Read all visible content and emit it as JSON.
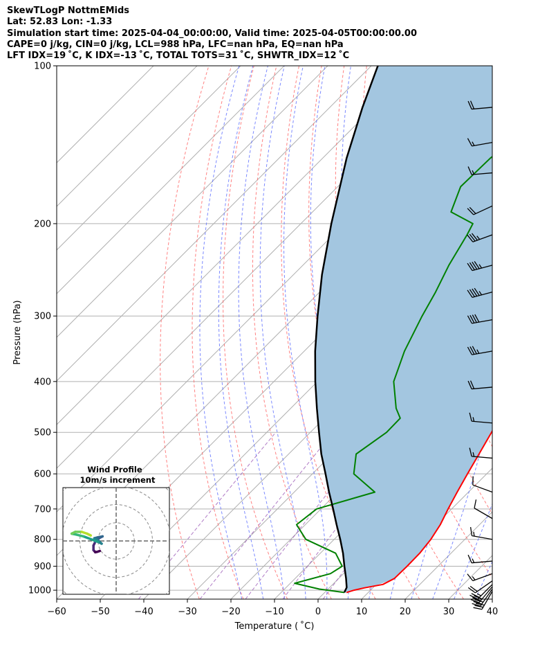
{
  "title_lines": [
    "SkewTLogP NottmEMids",
    "Lat: 52.83   Lon: -1.33",
    "Simulation start time: 2025-04-04_00:00:00, Valid time: 2025-04-05T00:00:00.00",
    "CAPE=0 j/kg, CIN=0 j/kg, LCL=988 hPa, LFC=nan hPa, EQ=nan hPa",
    "LFT IDX=19 ˚C, K IDX=-13 ˚C, TOTAL TOTS=31 ˚C, SHWTR_IDX=12 ˚C"
  ],
  "chart_data": {
    "type": "line",
    "chart_kind": "skew-T log-P diagram",
    "xlabel": "Temperature ( ˚C)",
    "ylabel": "Pressure (hPa)",
    "xlim": [
      -60,
      40
    ],
    "ylim": [
      1040,
      100
    ],
    "y_scale": "log",
    "skew": "45deg",
    "grid": true,
    "x_ticks": [
      -60,
      -50,
      -40,
      -30,
      -20,
      -10,
      0,
      10,
      20,
      30,
      40
    ],
    "y_ticks": [
      100,
      200,
      300,
      400,
      500,
      600,
      700,
      800,
      900,
      1000
    ],
    "colors": {
      "temperature": "#ff0000",
      "dewpoint": "#008000",
      "parcel": "#000000",
      "cape_shade": "#a3c6e0",
      "dry_adiabats": "#ff6b6b",
      "moist_adiabats": "#5a6bff",
      "mixing_ratio": "#9b59b6",
      "isotherms": "#b0b0b0"
    },
    "series": [
      {
        "key": "temperature",
        "points": [
          {
            "p": 1010,
            "t": 5.0
          },
          {
            "p": 1000,
            "t": 6.2
          },
          {
            "p": 990,
            "t": 8.0
          },
          {
            "p": 975,
            "t": 11.5
          },
          {
            "p": 950,
            "t": 12.8
          },
          {
            "p": 900,
            "t": 12.9
          },
          {
            "p": 850,
            "t": 12.8
          },
          {
            "p": 800,
            "t": 12.2
          },
          {
            "p": 750,
            "t": 11.0
          },
          {
            "p": 700,
            "t": 9.2
          },
          {
            "p": 650,
            "t": 7.4
          },
          {
            "p": 600,
            "t": 5.6
          },
          {
            "p": 550,
            "t": 3.7
          },
          {
            "p": 500,
            "t": 1.6
          },
          {
            "p": 450,
            "t": -0.8
          },
          {
            "p": 400,
            "t": -3.5
          },
          {
            "p": 350,
            "t": -6.9
          },
          {
            "p": 300,
            "t": -9.5
          },
          {
            "p": 270,
            "t": -11.6
          },
          {
            "p": 250,
            "t": -13.6
          },
          {
            "p": 220,
            "t": -16.8
          },
          {
            "p": 200,
            "t": -19.3
          },
          {
            "p": 180,
            "t": -16.4
          },
          {
            "p": 160,
            "t": -13.6
          },
          {
            "p": 140,
            "t": -10.8
          },
          {
            "p": 130,
            "t": -10.4
          },
          {
            "p": 120,
            "t": -11.0
          },
          {
            "p": 110,
            "t": -10.0
          },
          {
            "p": 100,
            "t": -8.5
          }
        ]
      },
      {
        "key": "dewpoint",
        "points": [
          {
            "p": 1010,
            "t": 4.5
          },
          {
            "p": 995,
            "t": -2.0
          },
          {
            "p": 970,
            "t": -9.0
          },
          {
            "p": 930,
            "t": -3.0
          },
          {
            "p": 900,
            "t": -2.0
          },
          {
            "p": 850,
            "t": -6.5
          },
          {
            "p": 800,
            "t": -16.5
          },
          {
            "p": 750,
            "t": -22.0
          },
          {
            "p": 700,
            "t": -21.0
          },
          {
            "p": 650,
            "t": -11.5
          },
          {
            "p": 600,
            "t": -20.5
          },
          {
            "p": 550,
            "t": -24.5
          },
          {
            "p": 500,
            "t": -22.5
          },
          {
            "p": 470,
            "t": -22.6
          },
          {
            "p": 450,
            "t": -25.8
          },
          {
            "p": 400,
            "t": -32.5
          },
          {
            "p": 350,
            "t": -37.0
          },
          {
            "p": 300,
            "t": -41.0
          },
          {
            "p": 270,
            "t": -43.4
          },
          {
            "p": 240,
            "t": -46.5
          },
          {
            "p": 210,
            "t": -49.3
          },
          {
            "p": 200,
            "t": -50.5
          },
          {
            "p": 190,
            "t": -58.2
          },
          {
            "p": 170,
            "t": -61.8
          },
          {
            "p": 150,
            "t": -61.5
          },
          {
            "p": 130,
            "t": -59.3
          },
          {
            "p": 115,
            "t": -58.4
          },
          {
            "p": 100,
            "t": -57.0
          }
        ]
      },
      {
        "key": "parcel",
        "points": [
          {
            "p": 1010,
            "t": 4.5
          },
          {
            "p": 988,
            "t": 3.9
          },
          {
            "p": 950,
            "t": 1.7
          },
          {
            "p": 900,
            "t": -1.5
          },
          {
            "p": 850,
            "t": -4.8
          },
          {
            "p": 800,
            "t": -8.6
          },
          {
            "p": 750,
            "t": -12.8
          },
          {
            "p": 700,
            "t": -17.2
          },
          {
            "p": 650,
            "t": -22.0
          },
          {
            "p": 600,
            "t": -27.0
          },
          {
            "p": 550,
            "t": -32.5
          },
          {
            "p": 500,
            "t": -38.0
          },
          {
            "p": 450,
            "t": -44.0
          },
          {
            "p": 400,
            "t": -50.5
          },
          {
            "p": 350,
            "t": -57.5
          },
          {
            "p": 300,
            "t": -65.0
          },
          {
            "p": 250,
            "t": -73.5
          },
          {
            "p": 200,
            "t": -83.0
          },
          {
            "p": 150,
            "t": -94.5
          },
          {
            "p": 120,
            "t": -102.5
          },
          {
            "p": 100,
            "t": -108.5
          }
        ]
      }
    ],
    "wind_barbs": [
      {
        "p": 1005,
        "dir": 210,
        "kt": 30
      },
      {
        "p": 995,
        "dir": 215,
        "kt": 30
      },
      {
        "p": 985,
        "dir": 220,
        "kt": 30
      },
      {
        "p": 975,
        "dir": 225,
        "kt": 25
      },
      {
        "p": 960,
        "dir": 235,
        "kt": 20
      },
      {
        "p": 930,
        "dir": 250,
        "kt": 15
      },
      {
        "p": 880,
        "dir": 265,
        "kt": 15
      },
      {
        "p": 800,
        "dir": 280,
        "kt": 15
      },
      {
        "p": 730,
        "dir": 300,
        "kt": 10
      },
      {
        "p": 650,
        "dir": 290,
        "kt": 10
      },
      {
        "p": 560,
        "dir": 275,
        "kt": 15
      },
      {
        "p": 480,
        "dir": 275,
        "kt": 15
      },
      {
        "p": 410,
        "dir": 265,
        "kt": 20
      },
      {
        "p": 350,
        "dir": 260,
        "kt": 35
      },
      {
        "p": 305,
        "dir": 260,
        "kt": 40
      },
      {
        "p": 270,
        "dir": 255,
        "kt": 45
      },
      {
        "p": 240,
        "dir": 255,
        "kt": 45
      },
      {
        "p": 210,
        "dir": 250,
        "kt": 35
      },
      {
        "p": 185,
        "dir": 245,
        "kt": 20
      },
      {
        "p": 160,
        "dir": 265,
        "kt": 15
      },
      {
        "p": 140,
        "dir": 260,
        "kt": 15
      },
      {
        "p": 120,
        "dir": 265,
        "kt": 20
      }
    ],
    "hodograph": {
      "title": "Wind Profile",
      "subtitle": "10m/s increment",
      "rings_ms": [
        10,
        20,
        30,
        40
      ],
      "points": [
        {
          "u": -9.0,
          "v": -5.5
        },
        {
          "u": -10.5,
          "v": -6.0
        },
        {
          "u": -11.5,
          "v": -6.2
        },
        {
          "u": -12.5,
          "v": -5.0
        },
        {
          "u": -12.5,
          "v": -2.5
        },
        {
          "u": -11.5,
          "v": -0.5
        },
        {
          "u": -9.5,
          "v": 1.5
        },
        {
          "u": -7.5,
          "v": 2.5
        },
        {
          "u": -10.0,
          "v": 2.0
        },
        {
          "u": -12.0,
          "v": 1.5
        },
        {
          "u": -10.0,
          "v": 0.5
        },
        {
          "u": -8.0,
          "v": -1.5
        },
        {
          "u": -10.0,
          "v": -0.5
        },
        {
          "u": -14.0,
          "v": 1.0
        },
        {
          "u": -18.0,
          "v": 2.5
        },
        {
          "u": -22.0,
          "v": 3.5
        },
        {
          "u": -24.5,
          "v": 4.0
        },
        {
          "u": -22.5,
          "v": 5.0
        },
        {
          "u": -19.0,
          "v": 5.0
        },
        {
          "u": -16.0,
          "v": 4.0
        },
        {
          "u": -14.0,
          "v": 3.0
        }
      ]
    }
  }
}
